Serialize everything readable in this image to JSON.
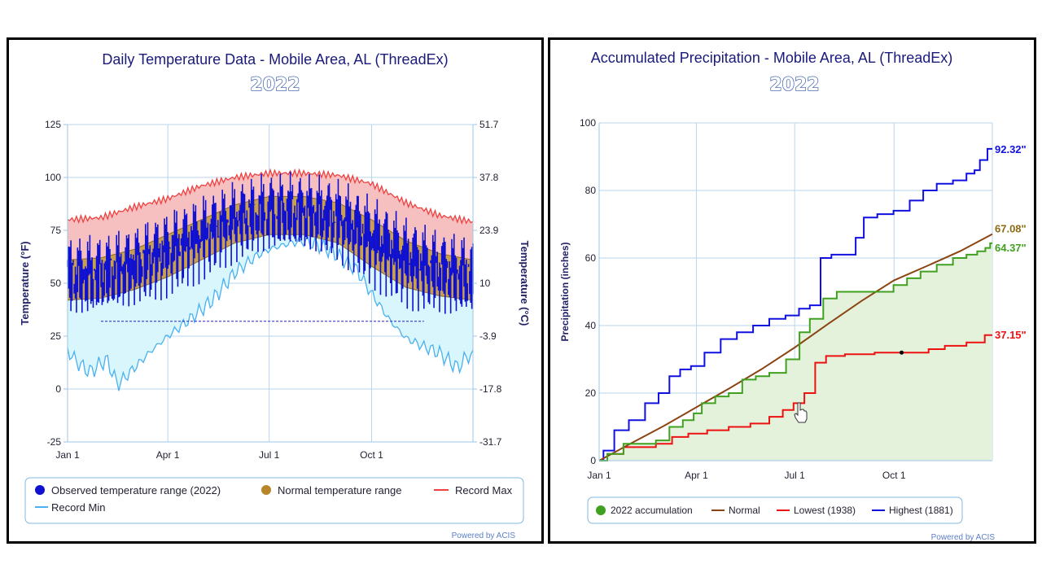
{
  "left_chart": {
    "title": "Daily Temperature Data - Mobile Area, AL (ThreadEx)",
    "year": "2022",
    "ylabel_left": "Temperature (°F)",
    "ylabel_right": "Temperature (°C)",
    "legend": {
      "observed": "Observed temperature range (2022)",
      "normal": "Normal temperature range",
      "record_max": "Record Max",
      "record_min": "Record Min"
    },
    "powered_by": "Powered by ACIS"
  },
  "right_chart": {
    "title": "Accumulated Precipitation - Mobile Area, AL (ThreadEx)",
    "year": "2022",
    "ylabel": "Precipitation (inches)",
    "legend": {
      "accum": "2022 accumulation",
      "normal": "Normal",
      "lowest": "Lowest (1938)",
      "highest": "Highest (1881)"
    },
    "end_labels": {
      "highest": "92.32\"",
      "normal": "67.08\"",
      "accum": "64.37\"",
      "lowest": "37.15\""
    },
    "powered_by": "Powered by ACIS"
  },
  "chart_data": [
    {
      "type": "area",
      "title": "Daily Temperature Data - Mobile Area, AL (ThreadEx)",
      "subtitle": "2022",
      "xlabel": "",
      "ylabel": "Temperature (°F)",
      "ylabel_secondary": "Temperature (°C)",
      "x_ticks": [
        "Jan 1",
        "Apr 1",
        "Jul 1",
        "Oct 1"
      ],
      "x_tick_days": [
        0,
        90,
        181,
        273
      ],
      "xlim_days": [
        0,
        364
      ],
      "y_ticks": [
        "125",
        "100",
        "75",
        "50",
        "25",
        "0",
        "-25"
      ],
      "y_ticks_secondary": [
        "51.7",
        "37.8",
        "23.9",
        "10",
        "-3.9",
        "-17.8",
        "-31.7"
      ],
      "ylim": [
        -25,
        125
      ],
      "grid": true,
      "legend_position": "bottom",
      "colors": {
        "observed": "#1010d0",
        "normal_fill": "#c8a050",
        "normal_line": "#8a6a2a",
        "record_max_fill": "#f7c0c0",
        "record_max_line": "#f04040",
        "record_min_fill": "#d8f6fb",
        "record_min_line": "#4ab0f0",
        "freezing_line": "#2020c0"
      },
      "series": [
        {
          "name": "Record Max",
          "x": [
            0,
            30,
            60,
            90,
            120,
            150,
            181,
            212,
            243,
            273,
            304,
            334,
            364
          ],
          "y": [
            80,
            81,
            86,
            90,
            96,
            100,
            102,
            102,
            101,
            97,
            88,
            82,
            79
          ]
        },
        {
          "name": "Normal temperature range (high)",
          "x": [
            0,
            30,
            60,
            90,
            120,
            150,
            181,
            212,
            243,
            273,
            304,
            334,
            364
          ],
          "y": [
            61,
            62,
            66,
            73,
            80,
            87,
            91,
            91,
            88,
            80,
            70,
            64,
            61
          ]
        },
        {
          "name": "Normal temperature range (low)",
          "x": [
            0,
            30,
            60,
            90,
            120,
            150,
            181,
            212,
            243,
            273,
            304,
            334,
            364
          ],
          "y": [
            42,
            43,
            47,
            53,
            61,
            69,
            73,
            73,
            69,
            58,
            48,
            44,
            42
          ]
        },
        {
          "name": "Record Min",
          "x": [
            0,
            10,
            20,
            35,
            45,
            60,
            75,
            90,
            110,
            130,
            150,
            170,
            181,
            200,
            212,
            230,
            243,
            260,
            273,
            290,
            304,
            320,
            334,
            350,
            360,
            364
          ],
          "y": [
            18,
            12,
            8,
            14,
            2,
            10,
            18,
            25,
            33,
            42,
            55,
            63,
            66,
            69,
            70,
            67,
            63,
            56,
            45,
            32,
            24,
            20,
            17,
            10,
            16,
            15
          ]
        },
        {
          "name": "Freezing (32°F)",
          "x": [
            30,
            320
          ],
          "y": [
            32,
            32
          ]
        }
      ]
    },
    {
      "type": "line",
      "title": "Accumulated Precipitation - Mobile Area, AL (ThreadEx)",
      "subtitle": "2022",
      "xlabel": "",
      "ylabel": "Precipitation (inches)",
      "x_ticks": [
        "Jan 1",
        "Apr 1",
        "Jul 1",
        "Oct 1"
      ],
      "x_tick_days": [
        0,
        90,
        181,
        273
      ],
      "xlim_days": [
        0,
        364
      ],
      "y_ticks": [
        "100",
        "80",
        "60",
        "40",
        "20",
        "0"
      ],
      "ylim": [
        0,
        100
      ],
      "grid": true,
      "legend_position": "bottom",
      "colors": {
        "accum": "#40a020",
        "accum_fill": "#e4f2dc",
        "normal": "#8b4513",
        "lowest": "#ee1111",
        "highest": "#1010e0"
      },
      "series": [
        {
          "name": "2022 accumulation",
          "x": [
            0,
            15,
            30,
            45,
            60,
            70,
            85,
            90,
            100,
            115,
            125,
            140,
            150,
            165,
            181,
            190,
            200,
            215,
            225,
            235,
            250,
            265,
            280,
            290,
            305,
            320,
            335,
            345,
            355,
            360,
            364
          ],
          "y": [
            0,
            2,
            5,
            5,
            6,
            10,
            12,
            14,
            17,
            19,
            20,
            24,
            25,
            26,
            30,
            38,
            42,
            48,
            50,
            50,
            50,
            50,
            52,
            54,
            56,
            58,
            60,
            61,
            62,
            63,
            64.37
          ]
        },
        {
          "name": "Normal",
          "x": [
            0,
            30,
            60,
            90,
            120,
            150,
            181,
            212,
            243,
            273,
            304,
            334,
            364
          ],
          "y": [
            0,
            5.2,
            10.3,
            15.8,
            21.3,
            27,
            33.5,
            40.5,
            47.3,
            53.4,
            57.7,
            62,
            67.08
          ]
        },
        {
          "name": "Lowest (1938)",
          "x": [
            0,
            15,
            30,
            45,
            60,
            75,
            90,
            110,
            130,
            150,
            165,
            175,
            185,
            195,
            205,
            215,
            240,
            270,
            300,
            310,
            330,
            350,
            364
          ],
          "y": [
            0,
            2,
            4,
            4,
            5,
            7,
            8,
            9,
            10,
            11,
            13,
            15,
            17,
            20,
            29,
            31,
            31.5,
            32,
            32,
            33,
            34,
            35,
            37.15
          ]
        },
        {
          "name": "Highest (1881)",
          "x": [
            0,
            8,
            20,
            35,
            50,
            60,
            70,
            80,
            90,
            105,
            120,
            135,
            150,
            165,
            180,
            190,
            200,
            210,
            220,
            235,
            240,
            250,
            265,
            280,
            295,
            305,
            320,
            335,
            345,
            350,
            355,
            364
          ],
          "y": [
            0,
            3,
            9,
            12,
            17,
            20,
            25,
            27,
            28,
            32,
            36,
            38,
            40,
            42,
            43,
            45,
            46,
            60,
            61,
            61,
            66,
            72,
            73,
            74,
            77,
            80,
            82,
            83,
            85,
            86,
            89,
            92.32
          ]
        }
      ]
    }
  ]
}
